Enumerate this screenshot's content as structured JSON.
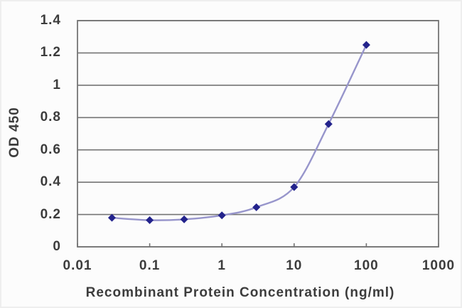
{
  "chart_data": {
    "type": "line",
    "title": "",
    "xlabel": "Recombinant Protein Concentration (ng/ml)",
    "ylabel": "OD 450",
    "x_scale": "log",
    "xlim": [
      0.01,
      1000
    ],
    "ylim": [
      0,
      1.4
    ],
    "x": [
      0.03,
      0.1,
      0.3,
      1,
      3,
      10,
      30,
      100
    ],
    "y": [
      0.18,
      0.165,
      0.17,
      0.195,
      0.245,
      0.37,
      0.76,
      1.25
    ],
    "x_ticks": [
      "0.01",
      "0.1",
      "1",
      "10",
      "100",
      "1000"
    ],
    "x_tick_values": [
      0.01,
      0.1,
      1,
      10,
      100,
      1000
    ],
    "y_ticks": [
      "0",
      "0.2",
      "0.4",
      "0.6",
      "0.8",
      "1",
      "1.2",
      "1.4"
    ],
    "y_tick_values": [
      0,
      0.2,
      0.4,
      0.6,
      0.8,
      1,
      1.2,
      1.4
    ],
    "grid": "horizontal",
    "legend": "none",
    "marker": "diamond",
    "line_style": "smooth",
    "colors": {
      "line": "#9795CB",
      "marker": "#23238C",
      "grid": "#747474",
      "frame": "#747474",
      "text": "#3c3c3c"
    }
  }
}
